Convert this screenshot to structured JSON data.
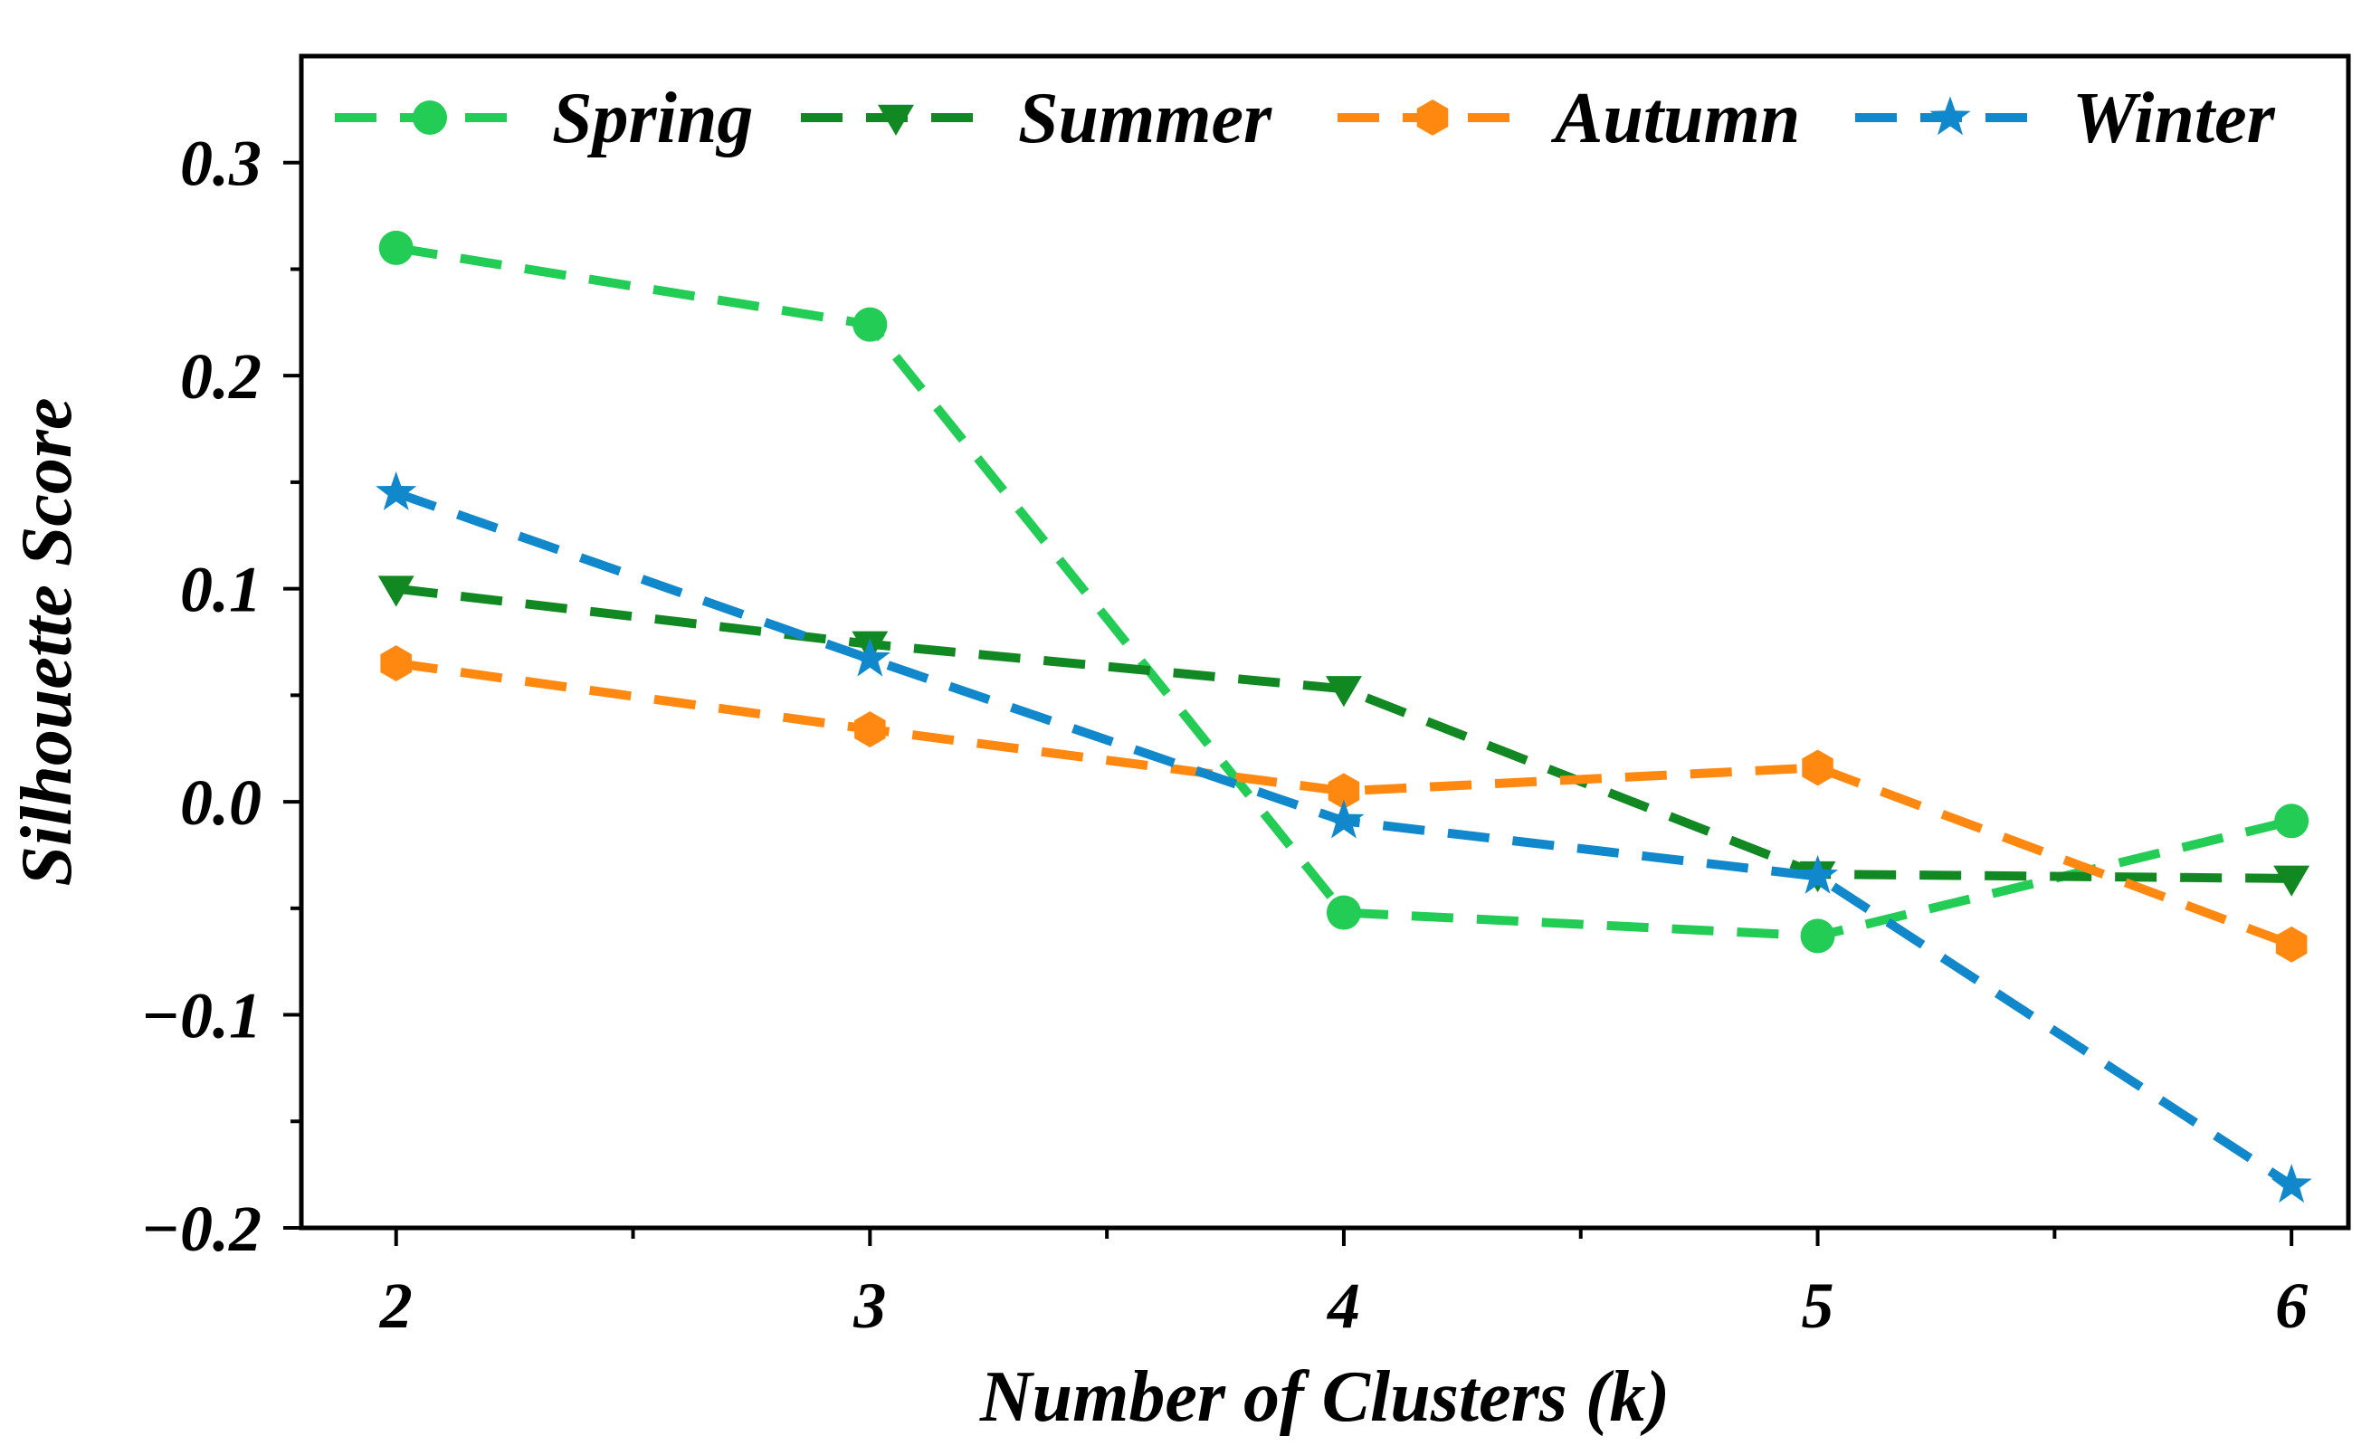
{
  "chart_data": {
    "type": "line",
    "title": "",
    "xlabel": "Number of Clusters (k)",
    "ylabel": "Silhouette Score",
    "x": [
      2,
      3,
      4,
      5,
      6
    ],
    "xlim": [
      1.8,
      6.12
    ],
    "ylim": [
      -0.2,
      0.35
    ],
    "xticks": [
      2,
      3,
      4,
      5,
      6
    ],
    "xtick_labels": [
      "2",
      "3",
      "4",
      "5",
      "6"
    ],
    "yticks": [
      -0.2,
      -0.1,
      0.0,
      0.1,
      0.2,
      0.3
    ],
    "ytick_labels": [
      "−0.2",
      "−0.1",
      "0.0",
      "0.1",
      "0.2",
      "0.3"
    ],
    "grid": false,
    "legend_position": "top",
    "series": [
      {
        "name": "Spring",
        "color": "#22cc55",
        "marker": "circle",
        "values": [
          0.26,
          0.224,
          -0.052,
          -0.063,
          -0.009
        ]
      },
      {
        "name": "Summer",
        "color": "#118822",
        "marker": "triangle-down",
        "values": [
          0.1,
          0.074,
          0.053,
          -0.034,
          -0.036
        ]
      },
      {
        "name": "Autumn",
        "color": "#ff8811",
        "marker": "hexagon",
        "values": [
          0.065,
          0.034,
          0.005,
          0.016,
          -0.067
        ]
      },
      {
        "name": "Winter",
        "color": "#1188cc",
        "marker": "star",
        "values": [
          0.145,
          0.067,
          -0.009,
          -0.035,
          -0.18
        ]
      }
    ]
  }
}
